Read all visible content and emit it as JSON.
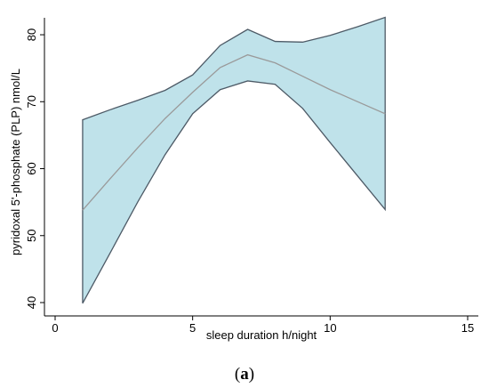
{
  "chart_data": {
    "type": "area",
    "title": "",
    "xlabel": "sleep duration h/night",
    "ylabel": "pyridoxal 5'-phosphate (PLP) nmol/L",
    "xlim": [
      0,
      15
    ],
    "ylim": [
      40,
      82
    ],
    "xticks": [
      0,
      5,
      10,
      15
    ],
    "yticks": [
      40,
      50,
      60,
      70,
      80
    ],
    "grid": false,
    "legend": "none",
    "x": [
      1,
      2,
      3,
      4,
      5,
      6,
      7,
      8,
      9,
      10,
      11,
      12
    ],
    "series": [
      {
        "role": "upper-ci",
        "values": [
          67.3,
          68.8,
          70.2,
          71.7,
          74.0,
          78.4,
          80.8,
          79.0,
          78.9,
          79.9,
          81.2,
          82.6
        ]
      },
      {
        "role": "fitted",
        "values": [
          53.8,
          58.5,
          63.1,
          67.5,
          71.4,
          75.1,
          77.0,
          75.8,
          73.8,
          71.8,
          70.0,
          68.2
        ]
      },
      {
        "role": "lower-ci",
        "values": [
          39.9,
          47.4,
          55.0,
          62.1,
          68.2,
          71.8,
          73.1,
          72.6,
          69.0,
          63.9,
          58.9,
          53.9
        ]
      }
    ],
    "colors": {
      "band_fill": "#bfe2ea",
      "band_edge": "#4d5a66",
      "fit_line": "#9a9a9a",
      "axis": "#000000"
    }
  },
  "caption": {
    "open": "(",
    "letter": "a",
    "close": ")"
  }
}
